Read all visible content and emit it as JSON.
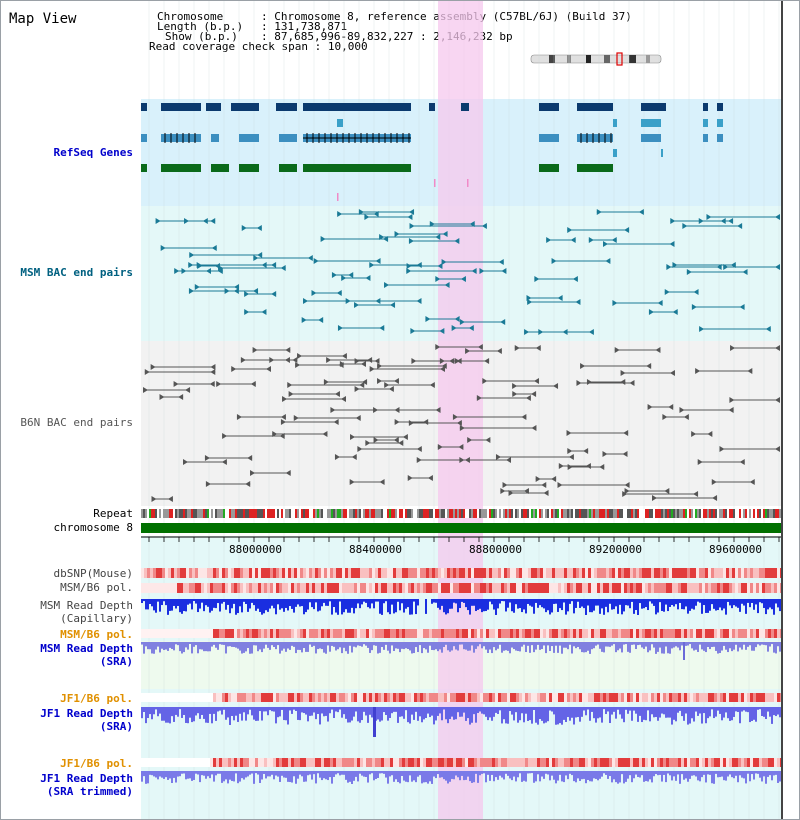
{
  "title": "Map View",
  "info": {
    "chromosome_label": "Chromosome",
    "chromosome_value": "Chromosome 8, reference assembly (C57BL/6J) (Build 37)",
    "length_label": "Length (b.p.)",
    "length_value": "131,738,871",
    "show_label": "Show (b.p.)",
    "show_value": "87,685,996-89,832,227 : 2,146,232 bp",
    "coverage_label": "Read coverage check span",
    "coverage_value": "10,000"
  },
  "tracks": {
    "refseq": "RefSeq Genes",
    "msm_bac": "MSM BAC end pairs",
    "b6n_bac": "B6N BAC end pairs",
    "repeat": "Repeat",
    "chromosome": "chromosome 8",
    "dbsnp": "dbSNP(Mouse)",
    "msm_b6_pol_1": "MSM/B6 pol.",
    "msm_depth_cap_1": "MSM Read Depth",
    "msm_depth_cap_2": "(Capillary)",
    "msm_b6_pol_2": "MSM/B6 pol.",
    "msm_depth_sra_1": "MSM Read Depth",
    "msm_depth_sra_2": "(SRA)",
    "jf1_b6_pol_1": "JF1/B6 pol.",
    "jf1_depth_sra_1": "JF1 Read Depth",
    "jf1_depth_sra_2": "(SRA)",
    "jf1_b6_pol_2": "JF1/B6 pol.",
    "jf1_depth_trim_1": "JF1 Read Depth",
    "jf1_depth_trim_2": "(SRA trimmed)"
  },
  "axis": {
    "ticks": [
      "88000000",
      "88400000",
      "88800000",
      "89200000",
      "89600000"
    ]
  },
  "colors": {
    "track_label_blue": "#0000cc",
    "track_label_teal": "#006080",
    "track_label_gray": "#555555",
    "track_label_orange": "#e09000",
    "highlight": "#f9d7f0",
    "refseq_bg": "#d9f1fb",
    "msm_bg": "#e4f8f8",
    "b6n_bg": "#f2f2f2"
  }
}
